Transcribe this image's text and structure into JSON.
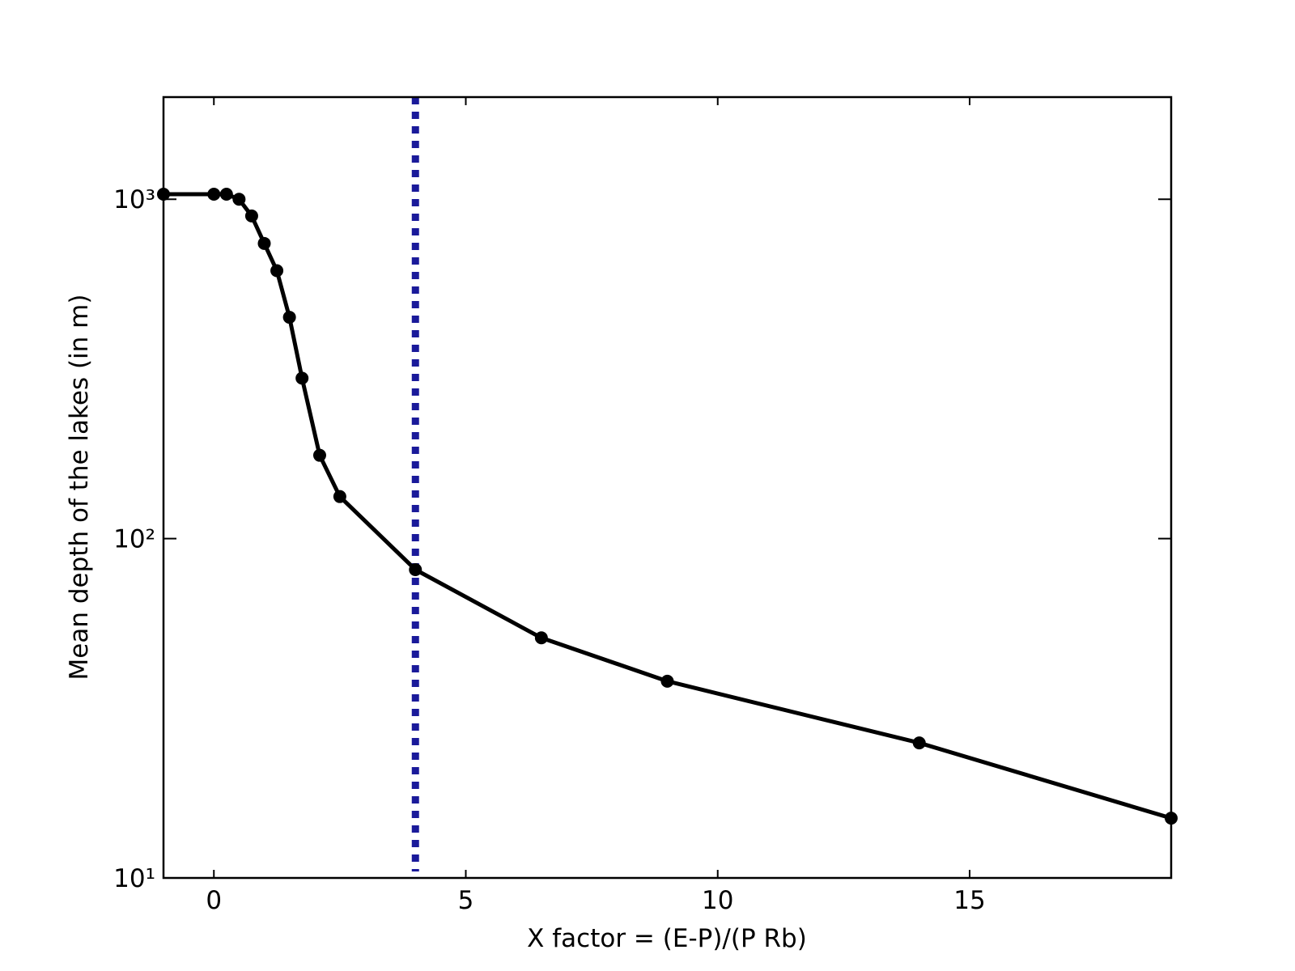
{
  "chart_data": {
    "type": "line",
    "xlabel": "X factor = (E-P)/(P Rb)",
    "ylabel": "Mean depth of the lakes (in m)",
    "x": [
      -1,
      0,
      0.25,
      0.5,
      0.75,
      1,
      1.25,
      1.5,
      1.75,
      2.1,
      2.5,
      4,
      6.5,
      9,
      14,
      19
    ],
    "series": [
      {
        "color": "#000000",
        "values": [
          1035,
          1035,
          1035,
          1000,
          893,
          741,
          616,
          449,
          297,
          176,
          133,
          81,
          51,
          38,
          25,
          15
        ]
      }
    ],
    "xlim": [
      -1,
      19
    ],
    "xticks": [
      0,
      5,
      10,
      15
    ],
    "ylim": [
      10,
      2000
    ],
    "ylog": true,
    "yticks": [
      {
        "value": 10,
        "label": "10¹"
      },
      {
        "value": 100,
        "label": "10²"
      },
      {
        "value": 1000,
        "label": "10³"
      }
    ],
    "vline": {
      "x": 4,
      "color": "#1a1a9a"
    }
  }
}
